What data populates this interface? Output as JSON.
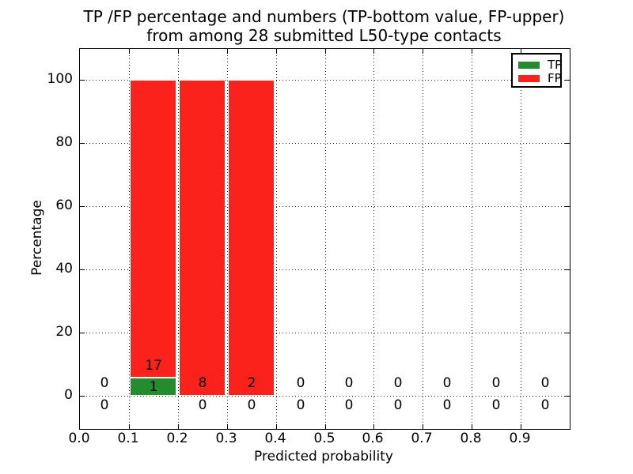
{
  "title": {
    "line1": "TP /FP percentage and numbers (TP-bottom value, FP-upper)",
    "line2": "from among 28 submitted L50-type contacts"
  },
  "axes": {
    "xlabel": "Predicted probability",
    "ylabel": "Percentage",
    "x_ticks": [
      "0.0",
      "0.1",
      "0.2",
      "0.3",
      "0.4",
      "0.5",
      "0.6",
      "0.7",
      "0.8",
      "0.9"
    ],
    "y_ticks": [
      "0",
      "20",
      "40",
      "60",
      "80",
      "100"
    ]
  },
  "legend": {
    "items": [
      {
        "label": "TP",
        "color": "#238d2d"
      },
      {
        "label": "FP",
        "color": "#fb221b"
      }
    ]
  },
  "annotations": {
    "fp_row": [
      "0",
      "17",
      "8",
      "2",
      "0",
      "0",
      "0",
      "0",
      "0",
      "0"
    ],
    "tp_row": [
      "0",
      "1",
      "0",
      "0",
      "0",
      "0",
      "0",
      "0",
      "0",
      "0"
    ]
  },
  "chart_data": {
    "type": "bar",
    "stacked": true,
    "title": "TP /FP percentage and numbers (TP-bottom value, FP-upper) from among 28 submitted L50-type contacts",
    "xlabel": "Predicted probability",
    "ylabel": "Percentage",
    "xlim": [
      0.0,
      1.0
    ],
    "ylim": [
      -10.5,
      110
    ],
    "grid": true,
    "legend_position": "upper right",
    "bin_width": 0.1,
    "bin_centers": [
      0.05,
      0.15,
      0.25,
      0.35,
      0.45,
      0.55,
      0.65,
      0.75,
      0.85,
      0.95
    ],
    "series": [
      {
        "name": "TP",
        "color": "#238d2d",
        "counts": [
          0,
          1,
          0,
          0,
          0,
          0,
          0,
          0,
          0,
          0
        ],
        "percent": [
          0,
          5.56,
          0,
          0,
          0,
          0,
          0,
          0,
          0,
          0
        ]
      },
      {
        "name": "FP",
        "color": "#fb221b",
        "counts": [
          0,
          17,
          8,
          2,
          0,
          0,
          0,
          0,
          0,
          0
        ],
        "percent": [
          0,
          94.44,
          100,
          100,
          0,
          0,
          0,
          0,
          0,
          0
        ]
      }
    ],
    "total_contacts": 28
  }
}
